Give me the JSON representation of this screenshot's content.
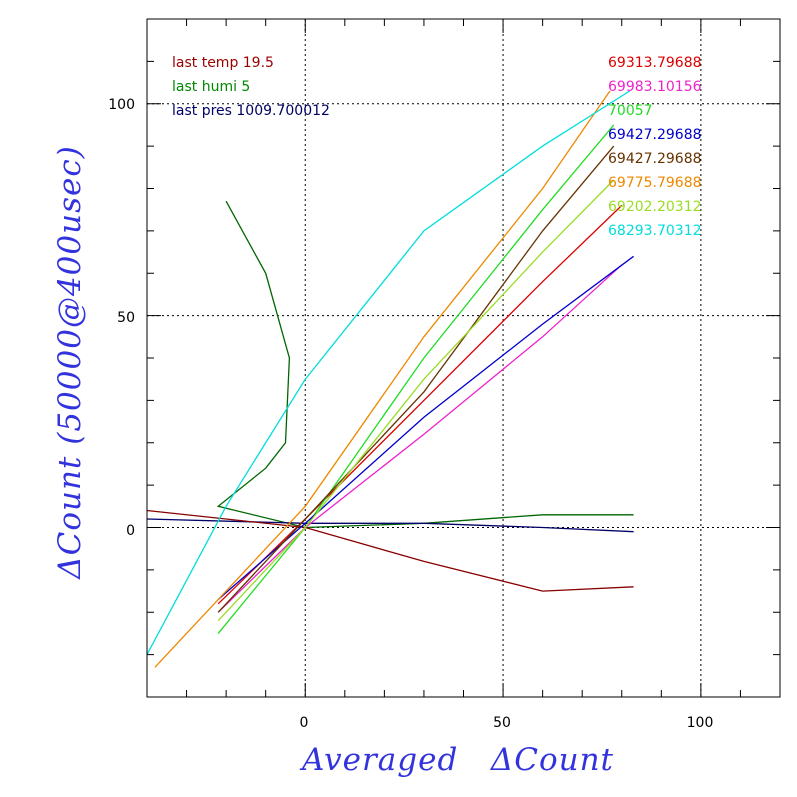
{
  "chart_data": {
    "type": "line",
    "xlabel": "Averaged   ΔCount",
    "ylabel": "ΔCount (50000@400usec)",
    "xlim": [
      -40,
      120
    ],
    "ylim": [
      -40,
      120
    ],
    "x_ticks": [
      "0",
      "50",
      "100"
    ],
    "y_ticks": [
      "0",
      "50",
      "100"
    ],
    "grid": "dotted at 0, 50, 100",
    "info_labels": [
      {
        "text": "last temp 19.5",
        "color": "#990000"
      },
      {
        "text": "last humi 5",
        "color": "#008800"
      },
      {
        "text": "last pres 1009.700012",
        "color": "#000066"
      }
    ],
    "series": [
      {
        "name": "69313.79688",
        "color": "#dd0000",
        "x": [
          -22,
          0,
          30,
          60,
          80
        ],
        "y": [
          -18,
          2,
          30,
          58,
          76
        ]
      },
      {
        "name": "69983.10156",
        "color": "#ee22cc",
        "x": [
          -22,
          0,
          30,
          60,
          80
        ],
        "y": [
          -20,
          0,
          22,
          45,
          62
        ]
      },
      {
        "name": "70057",
        "color": "#22dd22",
        "x": [
          -22,
          0,
          30,
          60,
          78
        ],
        "y": [
          -25,
          0,
          40,
          75,
          95
        ]
      },
      {
        "name": "69427.29688",
        "color": "#0000cc",
        "x": [
          -22,
          0,
          30,
          60,
          83
        ],
        "y": [
          -17,
          1,
          26,
          48,
          64
        ]
      },
      {
        "name": "69427.29688",
        "color": "#663300",
        "x": [
          -22,
          0,
          30,
          60,
          78
        ],
        "y": [
          -20,
          2,
          32,
          70,
          90
        ]
      },
      {
        "name": "69775.79688",
        "color": "#ee8800",
        "x": [
          -38,
          0,
          30,
          60,
          77
        ],
        "y": [
          -33,
          5,
          45,
          80,
          103
        ]
      },
      {
        "name": "69202.20312",
        "color": "#99dd22",
        "x": [
          -22,
          0,
          30,
          60,
          78
        ],
        "y": [
          -22,
          0,
          35,
          65,
          82
        ]
      },
      {
        "name": "68293.70312",
        "color": "#00dddd",
        "x": [
          -40,
          -20,
          0,
          30,
          60,
          82
        ],
        "y": [
          -30,
          5,
          35,
          70,
          90,
          103
        ]
      }
    ],
    "extra_traces": [
      {
        "color": "#006600",
        "x": [
          -20,
          -10,
          -4,
          -5,
          -10,
          -22,
          0,
          30,
          60,
          83
        ],
        "y": [
          77,
          60,
          40,
          20,
          14,
          5,
          0,
          1,
          3,
          3
        ]
      },
      {
        "color": "#000066",
        "x": [
          -40,
          0,
          30,
          60,
          83
        ],
        "y": [
          2,
          1,
          1,
          0,
          -1
        ]
      },
      {
        "color": "#880000",
        "x": [
          -40,
          0,
          30,
          60,
          83
        ],
        "y": [
          4,
          0,
          -8,
          -15,
          -14
        ]
      }
    ]
  }
}
